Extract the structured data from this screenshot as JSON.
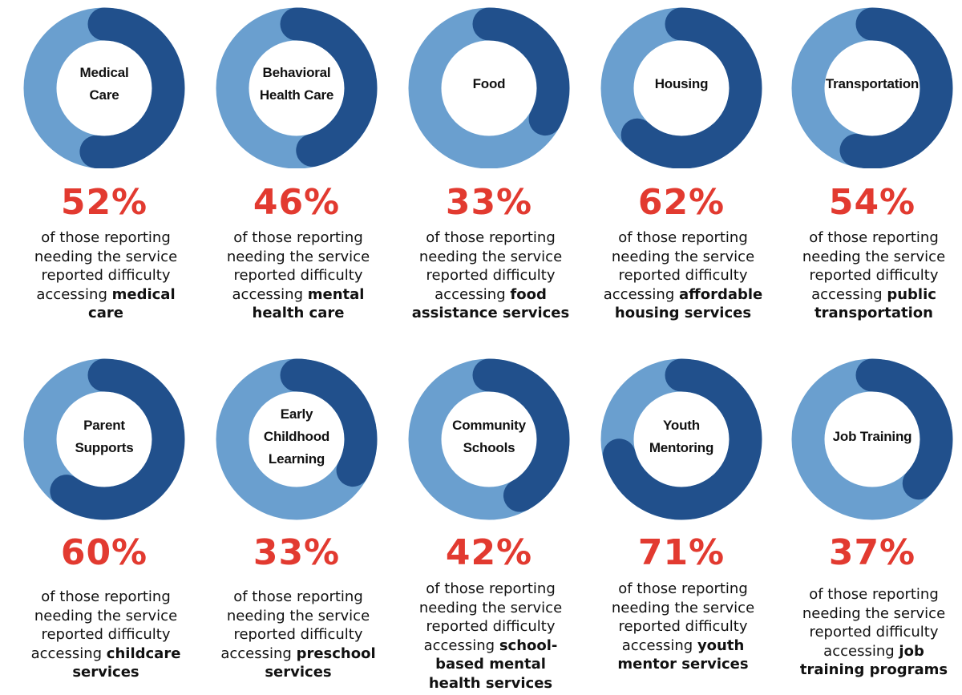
{
  "colors": {
    "ring_light": "#6a9fcf",
    "ring_dark": "#21508c",
    "percent_red": "#e23a30",
    "text": "#111111"
  },
  "shared_text": {
    "line1": "of those reporting",
    "line2": "needing the service",
    "line3": "reported difficulty",
    "accessing": "accessing"
  },
  "chart_data": [
    {
      "type": "pie",
      "title": "Medical Care",
      "values": [
        52,
        48
      ],
      "percent_label": "52%",
      "service": "medical care"
    },
    {
      "type": "pie",
      "title": "Behavioral Health Care",
      "values": [
        46,
        54
      ],
      "percent_label": "46%",
      "service": "mental health care"
    },
    {
      "type": "pie",
      "title": "Food",
      "values": [
        33,
        67
      ],
      "percent_label": "33%",
      "service": "food assistance services"
    },
    {
      "type": "pie",
      "title": "Housing",
      "values": [
        62,
        38
      ],
      "percent_label": "62%",
      "service": "affordable housing services"
    },
    {
      "type": "pie",
      "title": "Transportation",
      "values": [
        54,
        46
      ],
      "percent_label": "54%",
      "service": "public transportation"
    },
    {
      "type": "pie",
      "title": "Parent Supports",
      "values": [
        60,
        40
      ],
      "percent_label": "60%",
      "service": "childcare services"
    },
    {
      "type": "pie",
      "title": "Early Childhood Learning",
      "values": [
        33,
        67
      ],
      "percent_label": "33%",
      "service": "preschool services"
    },
    {
      "type": "pie",
      "title": "Community Schools",
      "values": [
        42,
        58
      ],
      "percent_label": "42%",
      "service": "school-based mental health services"
    },
    {
      "type": "pie",
      "title": "Youth Mentoring",
      "values": [
        71,
        29
      ],
      "percent_label": "71%",
      "service": "youth mentor services"
    },
    {
      "type": "pie",
      "title": "Job Training",
      "values": [
        37,
        63
      ],
      "percent_label": "37%",
      "service": "job training programs"
    }
  ]
}
